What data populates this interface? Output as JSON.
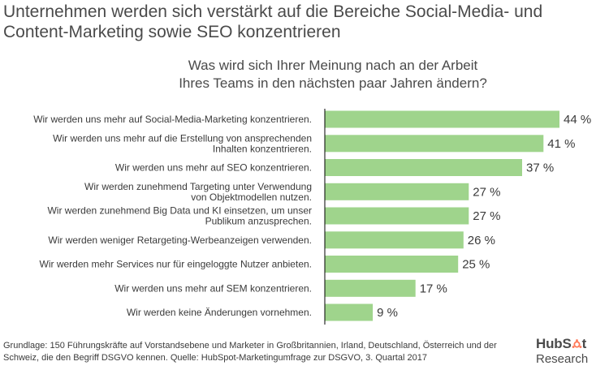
{
  "headline": "Unternehmen werden sich verstärkt auf die Bereiche Social-Media- und Content-Marketing sowie SEO konzentrieren",
  "chart_data": {
    "type": "bar",
    "orientation": "horizontal",
    "title": "Was wird sich Ihrer Meinung nach an der Arbeit Ihres Teams in den nächsten paar Jahren ändern?",
    "unit": "%",
    "xlim": [
      0,
      44
    ],
    "bar_color": "#9fd48c",
    "axis_color": "#000000",
    "categories": [
      [
        "Wir werden uns mehr auf Social-Media-Marketing konzentrieren."
      ],
      [
        "Wir werden uns mehr auf die Erstellung von ansprechenden",
        "Inhalten konzentrieren."
      ],
      [
        "Wir werden uns mehr auf SEO konzentrieren."
      ],
      [
        "Wir werden zunehmend Targeting unter Verwendung",
        "von Objektmodellen nutzen."
      ],
      [
        "Wir werden zunehmend Big Data und KI einsetzen, um unser",
        "Publikum anzusprechen."
      ],
      [
        "Wir werden weniger Retargeting-Werbeanzeigen verwenden."
      ],
      [
        "Wir werden mehr Services nur für eingeloggte Nutzer anbieten."
      ],
      [
        "Wir werden uns mehr auf SEM konzentrieren."
      ],
      [
        "Wir werden keine Änderungen vornehmen."
      ]
    ],
    "values": [
      44,
      41,
      37,
      27,
      27,
      26,
      25,
      17,
      9
    ],
    "value_labels": [
      "44 %",
      "41 %",
      "37 %",
      "27 %",
      "27 %",
      "26 %",
      "25 %",
      "17 %",
      "9 %"
    ]
  },
  "footnote": "Grundlage: 150 Führungskräfte auf Vorstandsebene und Marketer in Großbritannien, Irland, Deutschland, Österreich und der Schweiz, die den Begriff DSGVO kennen. Quelle: HubSpot-Marketingumfrage zur DSGVO, 3. Quartal 2017",
  "logo": {
    "brand_start": "HubS",
    "brand_end": "t",
    "sub": "Research",
    "accent": "#ff7a59"
  }
}
